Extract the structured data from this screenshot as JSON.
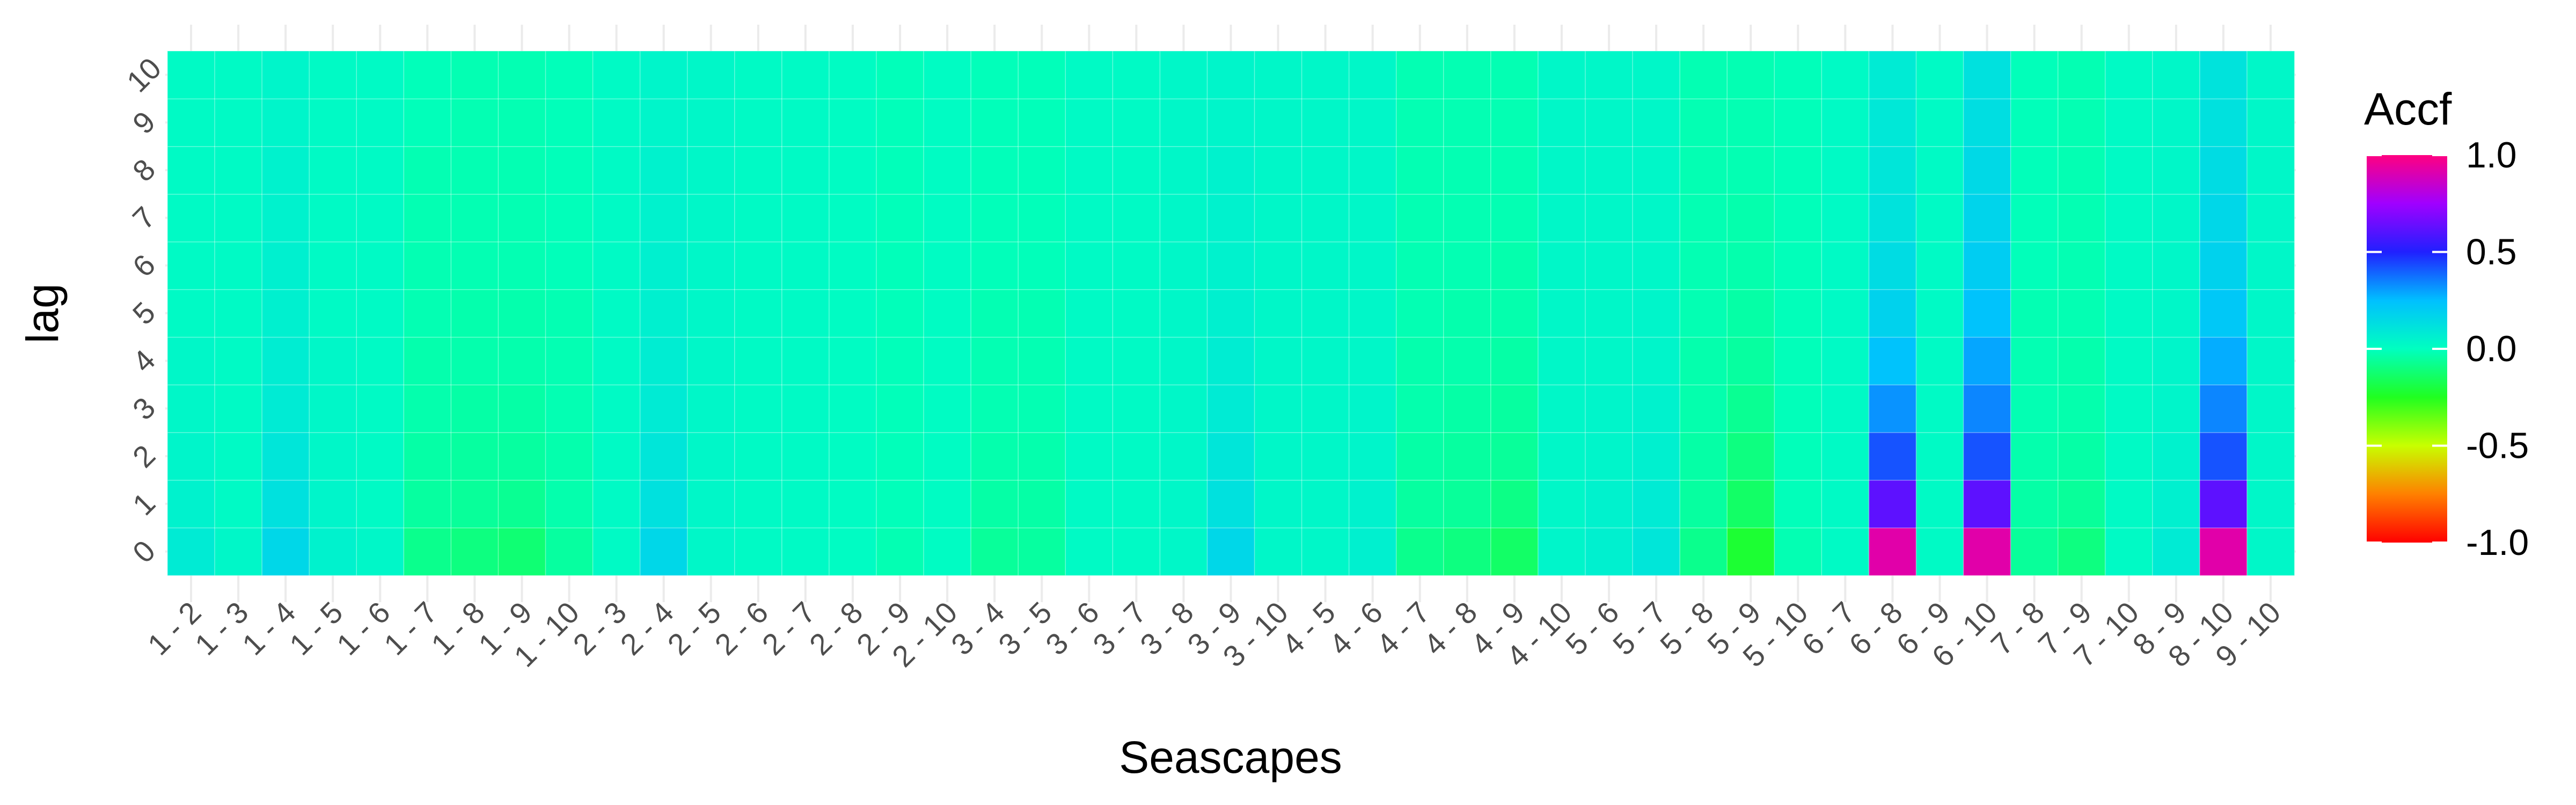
{
  "chart_data": {
    "type": "heatmap",
    "title": "",
    "xlabel": "Seascapes",
    "ylabel": "lag",
    "x_categories": [
      "1 - 2",
      "1 - 3",
      "1 - 4",
      "1 - 5",
      "1 - 6",
      "1 - 7",
      "1 - 8",
      "1 - 9",
      "1 - 10",
      "2 - 3",
      "2 - 4",
      "2 - 5",
      "2 - 6",
      "2 - 7",
      "2 - 8",
      "2 - 9",
      "2 - 10",
      "3 - 4",
      "3 - 5",
      "3 - 6",
      "3 - 7",
      "3 - 8",
      "3 - 9",
      "3 - 10",
      "4 - 5",
      "4 - 6",
      "4 - 7",
      "4 - 8",
      "4 - 9",
      "4 - 10",
      "5 - 6",
      "5 - 7",
      "5 - 8",
      "5 - 9",
      "5 - 10",
      "6 - 7",
      "6 - 8",
      "6 - 9",
      "6 - 10",
      "7 - 8",
      "7 - 9",
      "7 - 10",
      "8 - 9",
      "8 - 10",
      "9 - 10"
    ],
    "y_categories": [
      "0",
      "1",
      "2",
      "3",
      "4",
      "5",
      "6",
      "7",
      "8",
      "9",
      "10"
    ],
    "z_range": [
      -1.0,
      1.0
    ],
    "legend": {
      "title": "Accf",
      "position": "right",
      "ticks": [
        1.0,
        0.5,
        0.0,
        -0.5,
        -1.0
      ],
      "tick_labels": [
        "1.0",
        "0.5",
        "0.0",
        "-0.5",
        "-1.0"
      ]
    },
    "grid": true,
    "note_values": "values[i][lag] = Accf for x category i at lag 0..10",
    "values": [
      [
        0.08,
        0.05,
        0.04,
        0.03,
        0.03,
        0.02,
        0.02,
        0.02,
        0.02,
        0.02,
        0.02
      ],
      [
        0.03,
        0.02,
        0.02,
        0.02,
        0.02,
        0.02,
        0.02,
        0.02,
        0.02,
        0.02,
        0.02
      ],
      [
        0.16,
        0.12,
        0.1,
        0.08,
        0.07,
        0.06,
        0.06,
        0.05,
        0.05,
        0.04,
        0.04
      ],
      [
        0.05,
        0.04,
        0.03,
        0.03,
        0.03,
        0.02,
        0.02,
        0.02,
        0.02,
        0.02,
        0.02
      ],
      [
        0.03,
        0.02,
        0.02,
        0.02,
        0.02,
        0.02,
        0.02,
        0.02,
        0.02,
        0.02,
        0.02
      ],
      [
        -0.08,
        -0.05,
        -0.04,
        -0.03,
        -0.03,
        -0.02,
        -0.02,
        -0.02,
        -0.02,
        -0.01,
        -0.01
      ],
      [
        -0.1,
        -0.06,
        -0.05,
        -0.04,
        -0.03,
        -0.03,
        -0.02,
        -0.02,
        -0.02,
        -0.02,
        -0.02
      ],
      [
        -0.12,
        -0.07,
        -0.05,
        -0.04,
        -0.03,
        -0.03,
        -0.02,
        -0.02,
        -0.02,
        -0.02,
        -0.02
      ],
      [
        -0.05,
        -0.03,
        -0.03,
        -0.02,
        -0.02,
        -0.02,
        -0.01,
        -0.01,
        -0.01,
        -0.01,
        -0.01
      ],
      [
        0.02,
        0.02,
        0.02,
        0.02,
        0.02,
        0.02,
        0.02,
        0.02,
        0.02,
        0.02,
        0.02
      ],
      [
        0.16,
        0.12,
        0.1,
        0.08,
        0.07,
        0.06,
        0.06,
        0.05,
        0.05,
        0.04,
        0.04
      ],
      [
        0.03,
        0.03,
        0.03,
        0.03,
        0.03,
        0.03,
        0.03,
        0.03,
        0.03,
        0.03,
        0.03
      ],
      [
        0.02,
        0.02,
        0.02,
        0.02,
        0.02,
        0.02,
        0.02,
        0.02,
        0.02,
        0.02,
        0.02
      ],
      [
        0.02,
        0.02,
        0.02,
        0.02,
        0.02,
        0.02,
        0.02,
        0.02,
        0.02,
        0.02,
        0.02
      ],
      [
        0.01,
        0.01,
        0.01,
        0.01,
        0.01,
        0.01,
        0.01,
        0.01,
        0.01,
        0.01,
        0.01
      ],
      [
        -0.02,
        -0.01,
        -0.01,
        -0.01,
        -0.01,
        -0.01,
        -0.01,
        -0.01,
        -0.01,
        -0.01,
        -0.01
      ],
      [
        0.01,
        0.01,
        0.01,
        0.01,
        0.01,
        0.01,
        0.01,
        0.01,
        0.01,
        0.01,
        0.01
      ],
      [
        -0.06,
        -0.04,
        -0.03,
        -0.02,
        -0.02,
        -0.02,
        -0.01,
        -0.01,
        -0.01,
        -0.01,
        -0.01
      ],
      [
        -0.05,
        -0.04,
        -0.03,
        -0.02,
        -0.02,
        -0.02,
        -0.01,
        -0.01,
        -0.01,
        -0.01,
        -0.01
      ],
      [
        0.02,
        0.02,
        0.02,
        0.02,
        0.02,
        0.02,
        0.02,
        0.02,
        0.02,
        0.02,
        0.02
      ],
      [
        0.02,
        0.02,
        0.02,
        0.02,
        0.02,
        0.02,
        0.02,
        0.02,
        0.02,
        0.02,
        0.02
      ],
      [
        0.03,
        0.03,
        0.03,
        0.03,
        0.03,
        0.03,
        0.03,
        0.03,
        0.03,
        0.03,
        0.03
      ],
      [
        0.16,
        0.12,
        0.1,
        0.08,
        0.07,
        0.06,
        0.05,
        0.05,
        0.05,
        0.04,
        0.04
      ],
      [
        0.03,
        0.03,
        0.03,
        0.03,
        0.03,
        0.03,
        0.03,
        0.03,
        0.03,
        0.03,
        0.03
      ],
      [
        0.03,
        0.03,
        0.03,
        0.03,
        0.03,
        0.03,
        0.03,
        0.03,
        0.03,
        0.03,
        0.03
      ],
      [
        0.06,
        0.05,
        0.04,
        0.04,
        0.03,
        0.03,
        0.03,
        0.03,
        0.03,
        0.03,
        0.03
      ],
      [
        -0.08,
        -0.05,
        -0.04,
        -0.03,
        -0.03,
        -0.02,
        -0.02,
        -0.02,
        -0.02,
        -0.02,
        -0.02
      ],
      [
        -0.1,
        -0.06,
        -0.05,
        -0.04,
        -0.03,
        -0.03,
        -0.02,
        -0.02,
        -0.02,
        -0.02,
        -0.02
      ],
      [
        -0.14,
        -0.09,
        -0.06,
        -0.05,
        -0.04,
        -0.03,
        -0.03,
        -0.02,
        -0.02,
        -0.02,
        -0.02
      ],
      [
        0.04,
        0.03,
        0.03,
        0.03,
        0.03,
        0.03,
        0.03,
        0.03,
        0.03,
        0.03,
        0.03
      ],
      [
        0.06,
        0.05,
        0.04,
        0.04,
        0.03,
        0.03,
        0.03,
        0.03,
        0.03,
        0.03,
        0.03
      ],
      [
        0.1,
        0.08,
        0.06,
        0.05,
        0.04,
        0.04,
        0.03,
        0.03,
        0.03,
        0.03,
        0.03
      ],
      [
        -0.08,
        -0.05,
        -0.04,
        -0.03,
        -0.03,
        -0.02,
        -0.02,
        -0.02,
        -0.02,
        -0.02,
        -0.02
      ],
      [
        -0.22,
        -0.14,
        -0.1,
        -0.07,
        -0.05,
        -0.04,
        -0.03,
        -0.03,
        -0.02,
        -0.02,
        -0.02
      ],
      [
        -0.02,
        -0.01,
        -0.01,
        -0.01,
        -0.01,
        -0.01,
        -0.01,
        -0.01,
        -0.01,
        -0.01,
        -0.01
      ],
      [
        0.02,
        0.02,
        0.02,
        0.02,
        0.02,
        0.02,
        0.02,
        0.02,
        0.02,
        0.02,
        0.02
      ],
      [
        0.92,
        0.62,
        0.42,
        0.32,
        0.24,
        0.18,
        0.14,
        0.11,
        0.1,
        0.09,
        0.08
      ],
      [
        0.02,
        0.02,
        0.02,
        0.02,
        0.02,
        0.02,
        0.02,
        0.02,
        0.02,
        0.02,
        0.02
      ],
      [
        0.92,
        0.62,
        0.42,
        0.34,
        0.29,
        0.24,
        0.2,
        0.17,
        0.15,
        0.13,
        0.12
      ],
      [
        -0.06,
        -0.04,
        -0.03,
        -0.02,
        -0.02,
        -0.02,
        -0.01,
        -0.01,
        -0.01,
        -0.01,
        -0.01
      ],
      [
        -0.1,
        -0.06,
        -0.04,
        -0.03,
        -0.03,
        -0.02,
        -0.02,
        -0.02,
        -0.02,
        -0.02,
        -0.02
      ],
      [
        0.02,
        0.02,
        0.02,
        0.02,
        0.02,
        0.02,
        0.02,
        0.02,
        0.02,
        0.02,
        0.02
      ],
      [
        0.08,
        0.06,
        0.05,
        0.04,
        0.04,
        0.03,
        0.03,
        0.03,
        0.03,
        0.03,
        0.03
      ],
      [
        0.92,
        0.62,
        0.42,
        0.34,
        0.28,
        0.22,
        0.18,
        0.16,
        0.14,
        0.12,
        0.11
      ],
      [
        0.03,
        0.03,
        0.03,
        0.03,
        0.03,
        0.03,
        0.03,
        0.03,
        0.03,
        0.03,
        0.03
      ]
    ]
  }
}
